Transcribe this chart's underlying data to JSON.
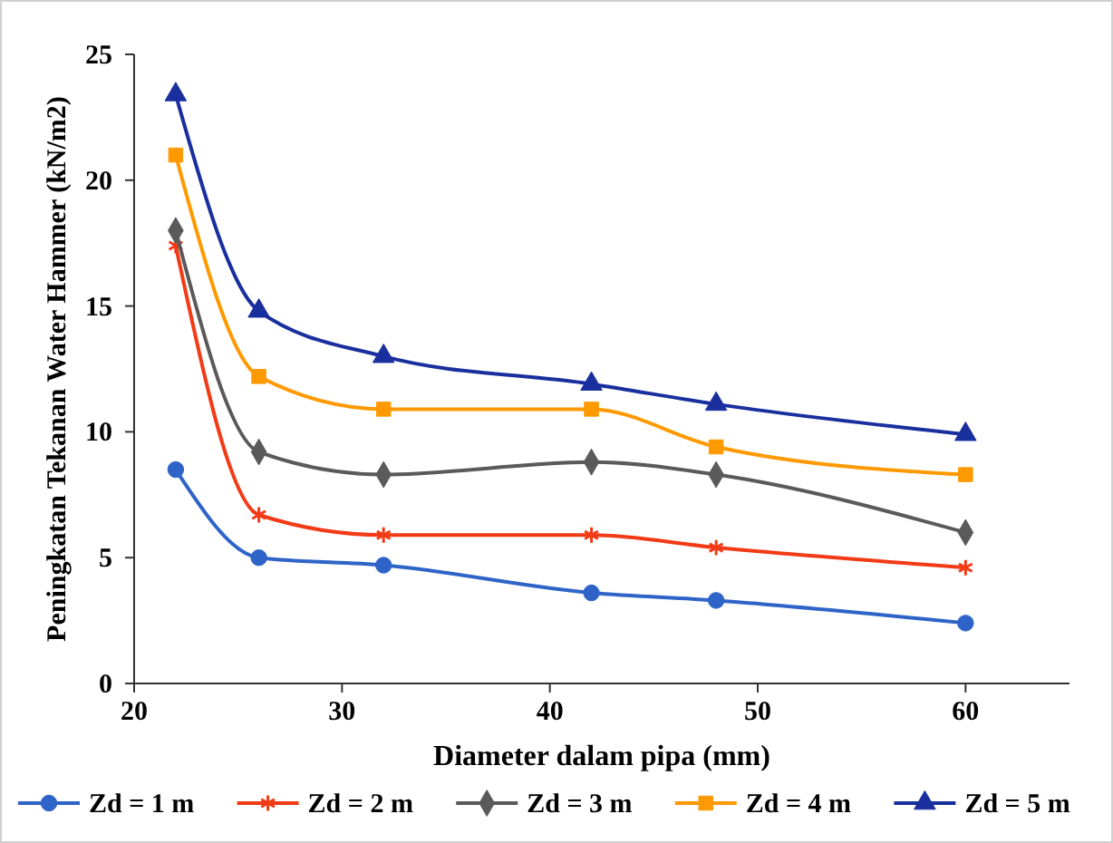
{
  "chart_data": {
    "type": "line",
    "xlabel": "Diameter dalam pipa (mm)",
    "ylabel": "Peningkatan Tekanan Water Hammer (kN/m2)",
    "x": [
      22,
      26,
      32,
      42,
      48,
      60
    ],
    "xlim": [
      20,
      65
    ],
    "xticks": [
      20,
      30,
      40,
      50,
      60
    ],
    "ylim": [
      0,
      25
    ],
    "yticks": [
      0,
      5,
      10,
      15,
      20,
      25
    ],
    "grid": false,
    "legend": "bottom",
    "series": [
      {
        "name": "Zd = 1 m",
        "color": "#2e64c8",
        "marker": "circle",
        "values": [
          8.5,
          5.0,
          4.7,
          3.6,
          3.3,
          2.4
        ]
      },
      {
        "name": "Zd = 2 m",
        "color": "#f23a16",
        "marker": "cross",
        "values": [
          17.4,
          6.7,
          5.9,
          5.9,
          5.4,
          4.6
        ]
      },
      {
        "name": "Zd = 3 m",
        "color": "#5a5a5a",
        "marker": "diamond",
        "values": [
          18.0,
          9.2,
          8.3,
          8.8,
          8.3,
          6.0
        ]
      },
      {
        "name": "Zd = 4 m",
        "color": "#ff9900",
        "marker": "square",
        "values": [
          21.0,
          12.2,
          10.9,
          10.9,
          9.4,
          8.3
        ]
      },
      {
        "name": "Zd = 5 m",
        "color": "#1a2f9e",
        "marker": "triangle",
        "values": [
          23.4,
          14.8,
          13.0,
          11.9,
          11.1,
          9.9
        ]
      }
    ]
  }
}
